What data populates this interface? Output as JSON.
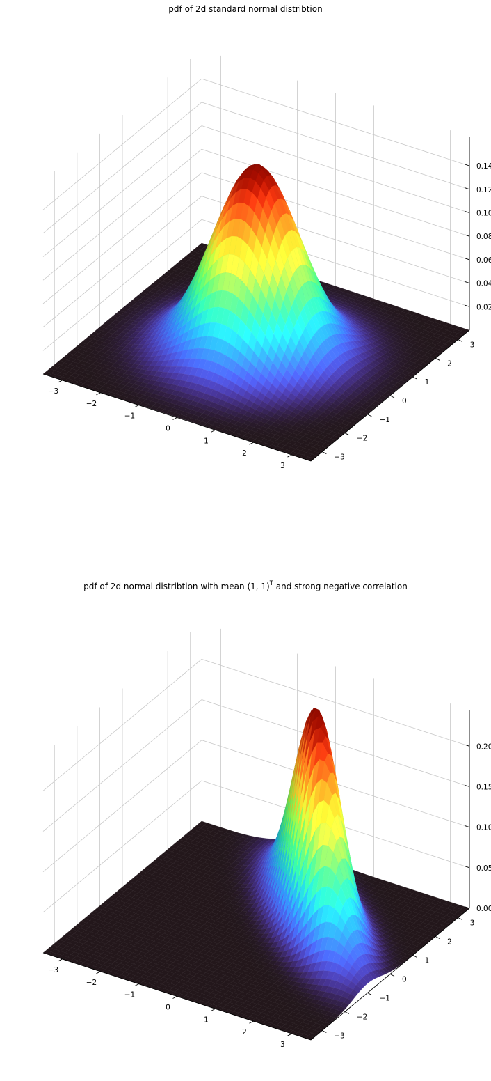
{
  "chart_data": [
    {
      "type": "surface3d",
      "title": "pdf of 2d standard normal distribtion",
      "colormap": "turbo",
      "distribution": {
        "mean": [
          0,
          0
        ],
        "covariance": [
          [
            1,
            0
          ],
          [
            0,
            1
          ]
        ]
      },
      "xlim": [
        -3.5,
        3.5
      ],
      "ylim": [
        -3.5,
        3.5
      ],
      "zlim": [
        0,
        0.165
      ],
      "grid": true,
      "x_ticks": [
        -3,
        -2,
        -1,
        0,
        1,
        2,
        3
      ],
      "x_tick_labels": [
        "−3",
        "−2",
        "−1",
        "0",
        "1",
        "2",
        "3"
      ],
      "y_ticks": [
        -3,
        -2,
        -1,
        0,
        1,
        2,
        3
      ],
      "y_tick_labels": [
        "−3",
        "−2",
        "−1",
        "0",
        "1",
        "2",
        "3"
      ],
      "z_ticks": [
        0.02,
        0.04,
        0.06,
        0.08,
        0.1,
        0.12,
        0.14
      ],
      "z_tick_labels": [
        "0.02",
        "0.04",
        "0.06",
        "0.08",
        "0.10",
        "0.12",
        "0.14"
      ],
      "peak_value": 0.159
    },
    {
      "type": "surface3d",
      "title": "pdf of 2d normal distribtion with mean (1, 1)",
      "title_superscript": "T",
      "title_suffix": " and strong negative correlation",
      "colormap": "turbo",
      "distribution": {
        "mean": [
          1,
          1
        ],
        "covariance": [
          [
            1,
            -0.8
          ],
          [
            -0.8,
            1
          ]
        ]
      },
      "xlim": [
        -3.5,
        3.5
      ],
      "ylim": [
        -3.5,
        3.5
      ],
      "zlim": [
        0,
        0.245
      ],
      "grid": true,
      "x_ticks": [
        -3,
        -2,
        -1,
        0,
        1,
        2,
        3
      ],
      "x_tick_labels": [
        "−3",
        "−2",
        "−1",
        "0",
        "1",
        "2",
        "3"
      ],
      "y_ticks": [
        -3,
        -2,
        -1,
        0,
        1,
        2,
        3
      ],
      "y_tick_labels": [
        "−3",
        "−2",
        "−1",
        "0",
        "1",
        "2",
        "3"
      ],
      "z_ticks": [
        0.0,
        0.05,
        0.1,
        0.15,
        0.2
      ],
      "z_tick_labels": [
        "0.00",
        "0.05",
        "0.10",
        "0.15",
        "0.20"
      ],
      "peak_value": 0.265
    }
  ]
}
